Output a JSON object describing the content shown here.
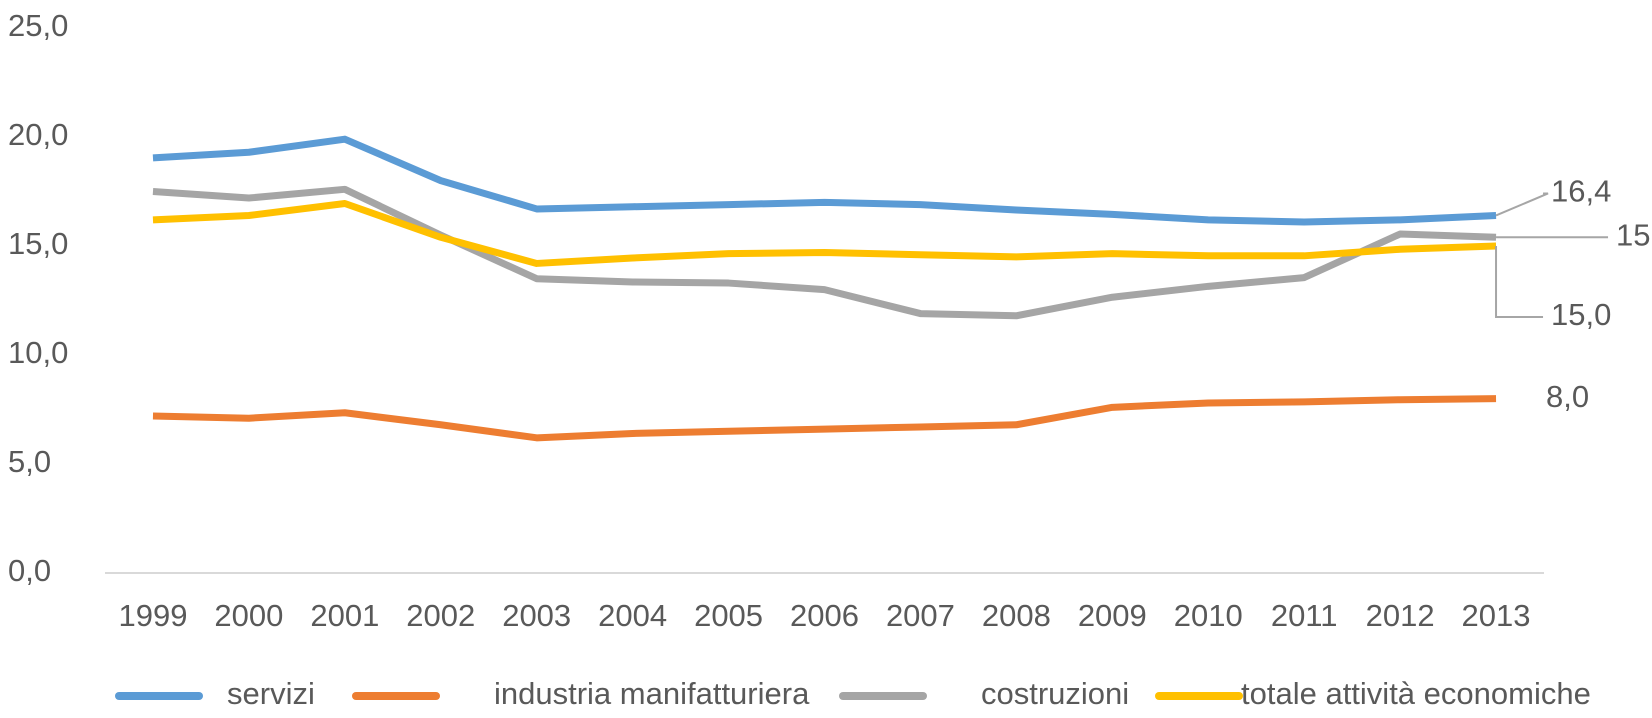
{
  "chart_data": {
    "type": "line",
    "categories": [
      "1999",
      "2000",
      "2001",
      "2002",
      "2003",
      "2004",
      "2005",
      "2006",
      "2007",
      "2008",
      "2009",
      "2010",
      "2011",
      "2012",
      "2013"
    ],
    "series": [
      {
        "name": "servizi",
        "color": "#5b9bd5",
        "values": [
          19.04,
          19.3,
          19.9,
          18.0,
          16.7,
          16.8,
          16.9,
          17.0,
          16.9,
          16.65,
          16.45,
          16.2,
          16.1,
          16.2,
          16.4
        ],
        "value_labels": [
          null,
          null,
          null,
          null,
          null,
          null,
          null,
          null,
          null,
          null,
          null,
          null,
          null,
          null,
          "16,4"
        ]
      },
      {
        "name": "industria manifatturiera",
        "color": "#ed7d31",
        "values": [
          7.2,
          7.1,
          7.35,
          6.8,
          6.2,
          6.4,
          6.5,
          6.6,
          6.7,
          6.8,
          7.6,
          7.8,
          7.85,
          7.95,
          8.0
        ],
        "value_labels": [
          null,
          null,
          null,
          null,
          null,
          null,
          null,
          null,
          null,
          null,
          null,
          null,
          null,
          null,
          "8,0"
        ]
      },
      {
        "name": "costruzioni",
        "color": "#a5a5a5",
        "values": [
          17.5,
          17.2,
          17.6,
          15.5,
          13.5,
          13.35,
          13.3,
          13.0,
          11.9,
          11.8,
          12.65,
          13.15,
          13.55,
          15.55,
          15.4
        ],
        "value_labels": [
          null,
          null,
          null,
          null,
          null,
          null,
          null,
          null,
          null,
          null,
          null,
          null,
          null,
          null,
          "15,4"
        ]
      },
      {
        "name": "totale attività economiche",
        "color": "#ffc000",
        "values": [
          16.2,
          16.4,
          16.95,
          15.4,
          14.2,
          14.45,
          14.65,
          14.7,
          14.6,
          14.5,
          14.65,
          14.55,
          14.55,
          14.85,
          15.0
        ],
        "value_labels": [
          null,
          null,
          null,
          null,
          null,
          null,
          null,
          null,
          null,
          null,
          null,
          null,
          null,
          null,
          "15,0"
        ]
      }
    ],
    "ylim": [
      0,
      25
    ],
    "yticks": [
      {
        "value": 0,
        "label": "0,0"
      },
      {
        "value": 5,
        "label": "5,0"
      },
      {
        "value": 10,
        "label": "10,0"
      },
      {
        "value": 15,
        "label": "15,0"
      },
      {
        "value": 20,
        "label": "20,0"
      },
      {
        "value": 25,
        "label": "25,0"
      }
    ],
    "grid": false,
    "legend": "bottom"
  }
}
